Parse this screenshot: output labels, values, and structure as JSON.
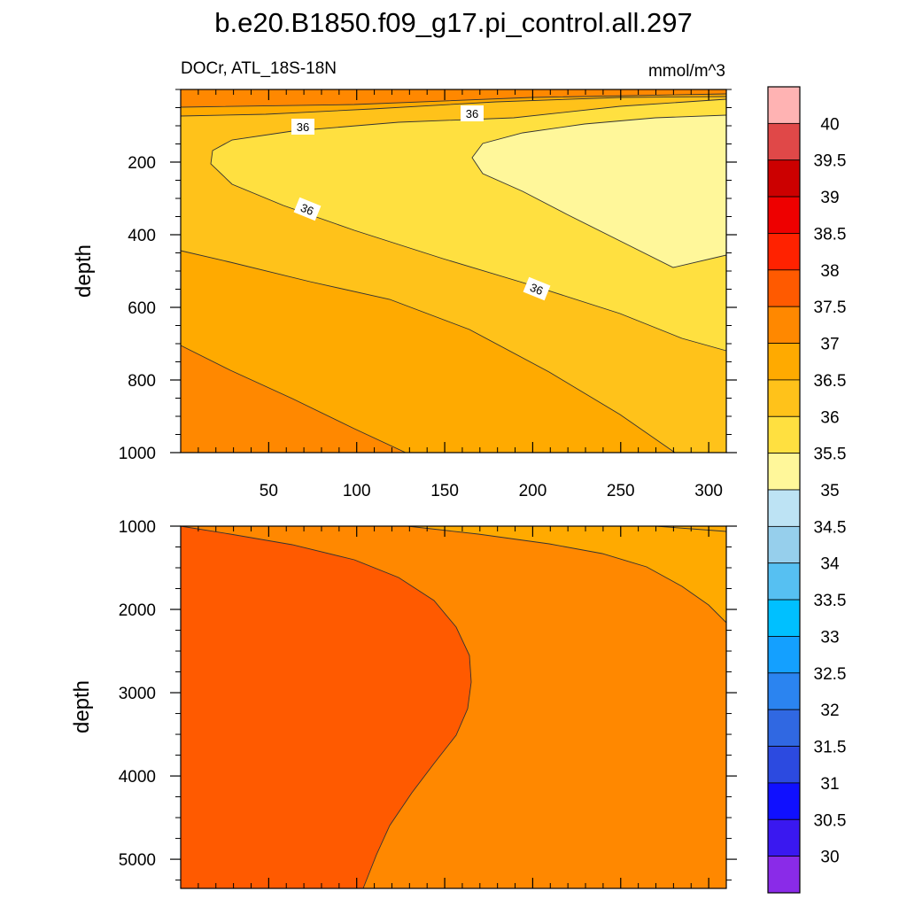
{
  "chart_data": {
    "type": "contour",
    "title": "b.e20.B1850.f09_g17.pi_control.all.297",
    "variable": "DOCr, ATL_18S-18N",
    "units": "mmol/m^3",
    "ylabel": "depth",
    "x_ticks": [
      "50",
      "100",
      "150",
      "200",
      "250",
      "300"
    ],
    "x_tick_values": [
      50,
      100,
      150,
      200,
      250,
      300
    ],
    "xlim": [
      0,
      310
    ],
    "upper_panel": {
      "ylim": [
        0,
        1000
      ],
      "y_ticks": [
        "200",
        "400",
        "600",
        "800",
        "1000"
      ],
      "y_tick_values": [
        200,
        400,
        600,
        800,
        1000
      ],
      "contour_labels": [
        "36",
        "36",
        "36",
        "36"
      ]
    },
    "lower_panel": {
      "ylim": [
        1000,
        5350
      ],
      "y_ticks": [
        "1000",
        "2000",
        "3000",
        "4000",
        "5000"
      ],
      "y_tick_values": [
        1000,
        2000,
        3000,
        4000,
        5000
      ]
    },
    "colorbar": {
      "labels": [
        "40",
        "39.5",
        "39",
        "38.5",
        "38",
        "37.5",
        "37",
        "36.5",
        "36",
        "35.5",
        "35",
        "34.5",
        "34",
        "33.5",
        "33",
        "32.5",
        "32",
        "31.5",
        "31",
        "30.5",
        "30"
      ],
      "colors": [
        "#ffb3b3",
        "#e04848",
        "#cc0000",
        "#ee0000",
        "#ff2200",
        "#ff5a00",
        "#ff8800",
        "#ffaa00",
        "#ffc21a",
        "#ffe040",
        "#fff79a",
        "#bde3f4",
        "#96cfec",
        "#56c0f2",
        "#00c0ff",
        "#14a0ff",
        "#2b84f0",
        "#3068e2",
        "#2c4ae0",
        "#1010ff",
        "#3a18f0",
        "#8a2be8"
      ]
    }
  }
}
